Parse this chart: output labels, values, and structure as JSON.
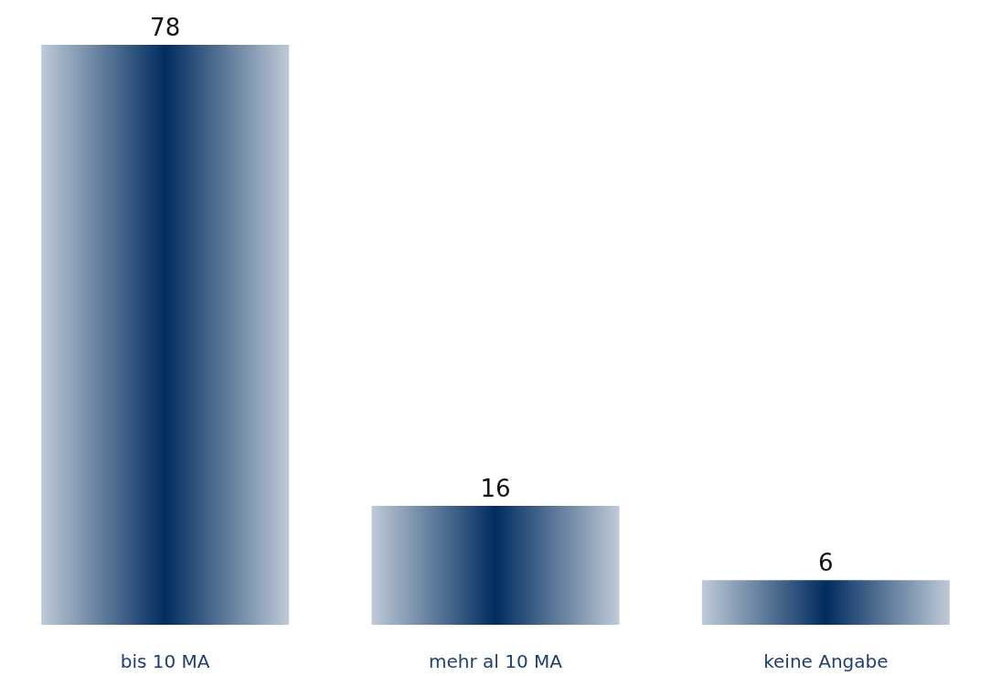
{
  "chart_data": {
    "type": "bar",
    "categories": [
      "bis 10 MA",
      "mehr al 10 MA",
      "keine Angabe"
    ],
    "values": [
      78,
      16,
      6
    ],
    "color": "#002c5f",
    "data_labels": true
  }
}
